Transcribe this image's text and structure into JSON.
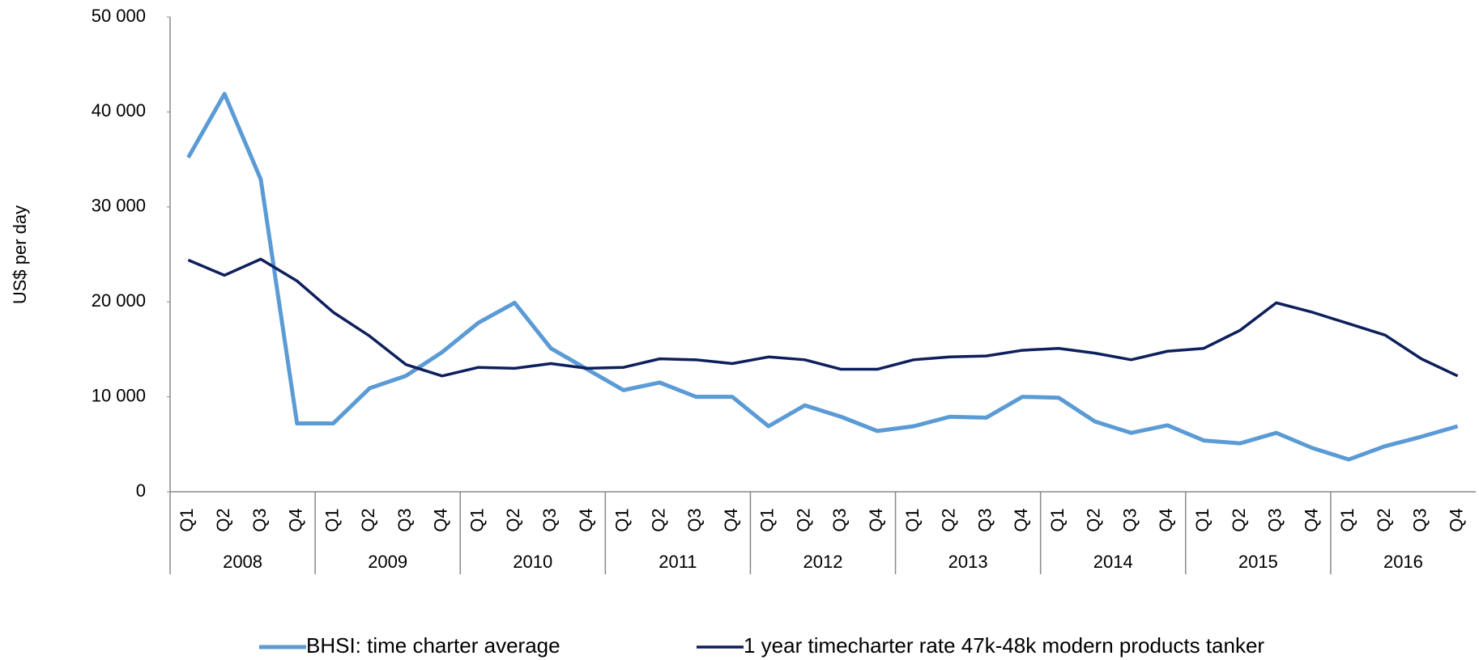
{
  "chart_data": {
    "type": "line",
    "y_label": "US$ per day",
    "categories": [
      "Q1",
      "Q2",
      "Q3",
      "Q4",
      "Q1",
      "Q2",
      "Q3",
      "Q4",
      "Q1",
      "Q2",
      "Q3",
      "Q4",
      "Q1",
      "Q2",
      "Q3",
      "Q4",
      "Q1",
      "Q2",
      "Q3",
      "Q4",
      "Q1",
      "Q2",
      "Q3",
      "Q4",
      "Q1",
      "Q2",
      "Q3",
      "Q4",
      "Q1",
      "Q2",
      "Q3",
      "Q4",
      "Q1",
      "Q2",
      "Q3",
      "Q4"
    ],
    "years": [
      "2008",
      "2009",
      "2010",
      "2011",
      "2012",
      "2013",
      "2014",
      "2015",
      "2016"
    ],
    "series": [
      {
        "name": "BHSI: time charter average",
        "color": "#5b9bd5",
        "values": [
          35200,
          41900,
          32900,
          7200,
          7200,
          10900,
          12200,
          14700,
          17800,
          19900,
          15100,
          12900,
          10700,
          11500,
          10000,
          10000,
          6900,
          9100,
          7900,
          6400,
          6900,
          7900,
          7800,
          10000,
          9900,
          7400,
          6200,
          7000,
          5400,
          5100,
          6200,
          4600,
          3400,
          4800,
          5800,
          6900
        ]
      },
      {
        "name": "1 year timecharter rate 47k-48k modern products tanker",
        "color": "#0d1f5c",
        "values": [
          24400,
          22800,
          24500,
          22200,
          18900,
          16400,
          13400,
          12200,
          13100,
          13000,
          13500,
          13000,
          13100,
          14000,
          13900,
          13500,
          14200,
          13900,
          12900,
          12900,
          13900,
          14200,
          14300,
          14900,
          15100,
          14600,
          13900,
          14800,
          15100,
          17000,
          19900,
          18900,
          17700,
          16500,
          14000,
          12200
        ]
      }
    ],
    "ylim": [
      0,
      50000
    ],
    "yticks": [
      0,
      {
        "value": 10000,
        "label": "10 000"
      },
      {
        "value": 20000,
        "label": "20 000"
      },
      {
        "value": 30000,
        "label": "30 000"
      },
      {
        "value": 40000,
        "label": "40 000"
      },
      {
        "value": 50000,
        "label": "50 000"
      }
    ],
    "legend": "bottom"
  }
}
